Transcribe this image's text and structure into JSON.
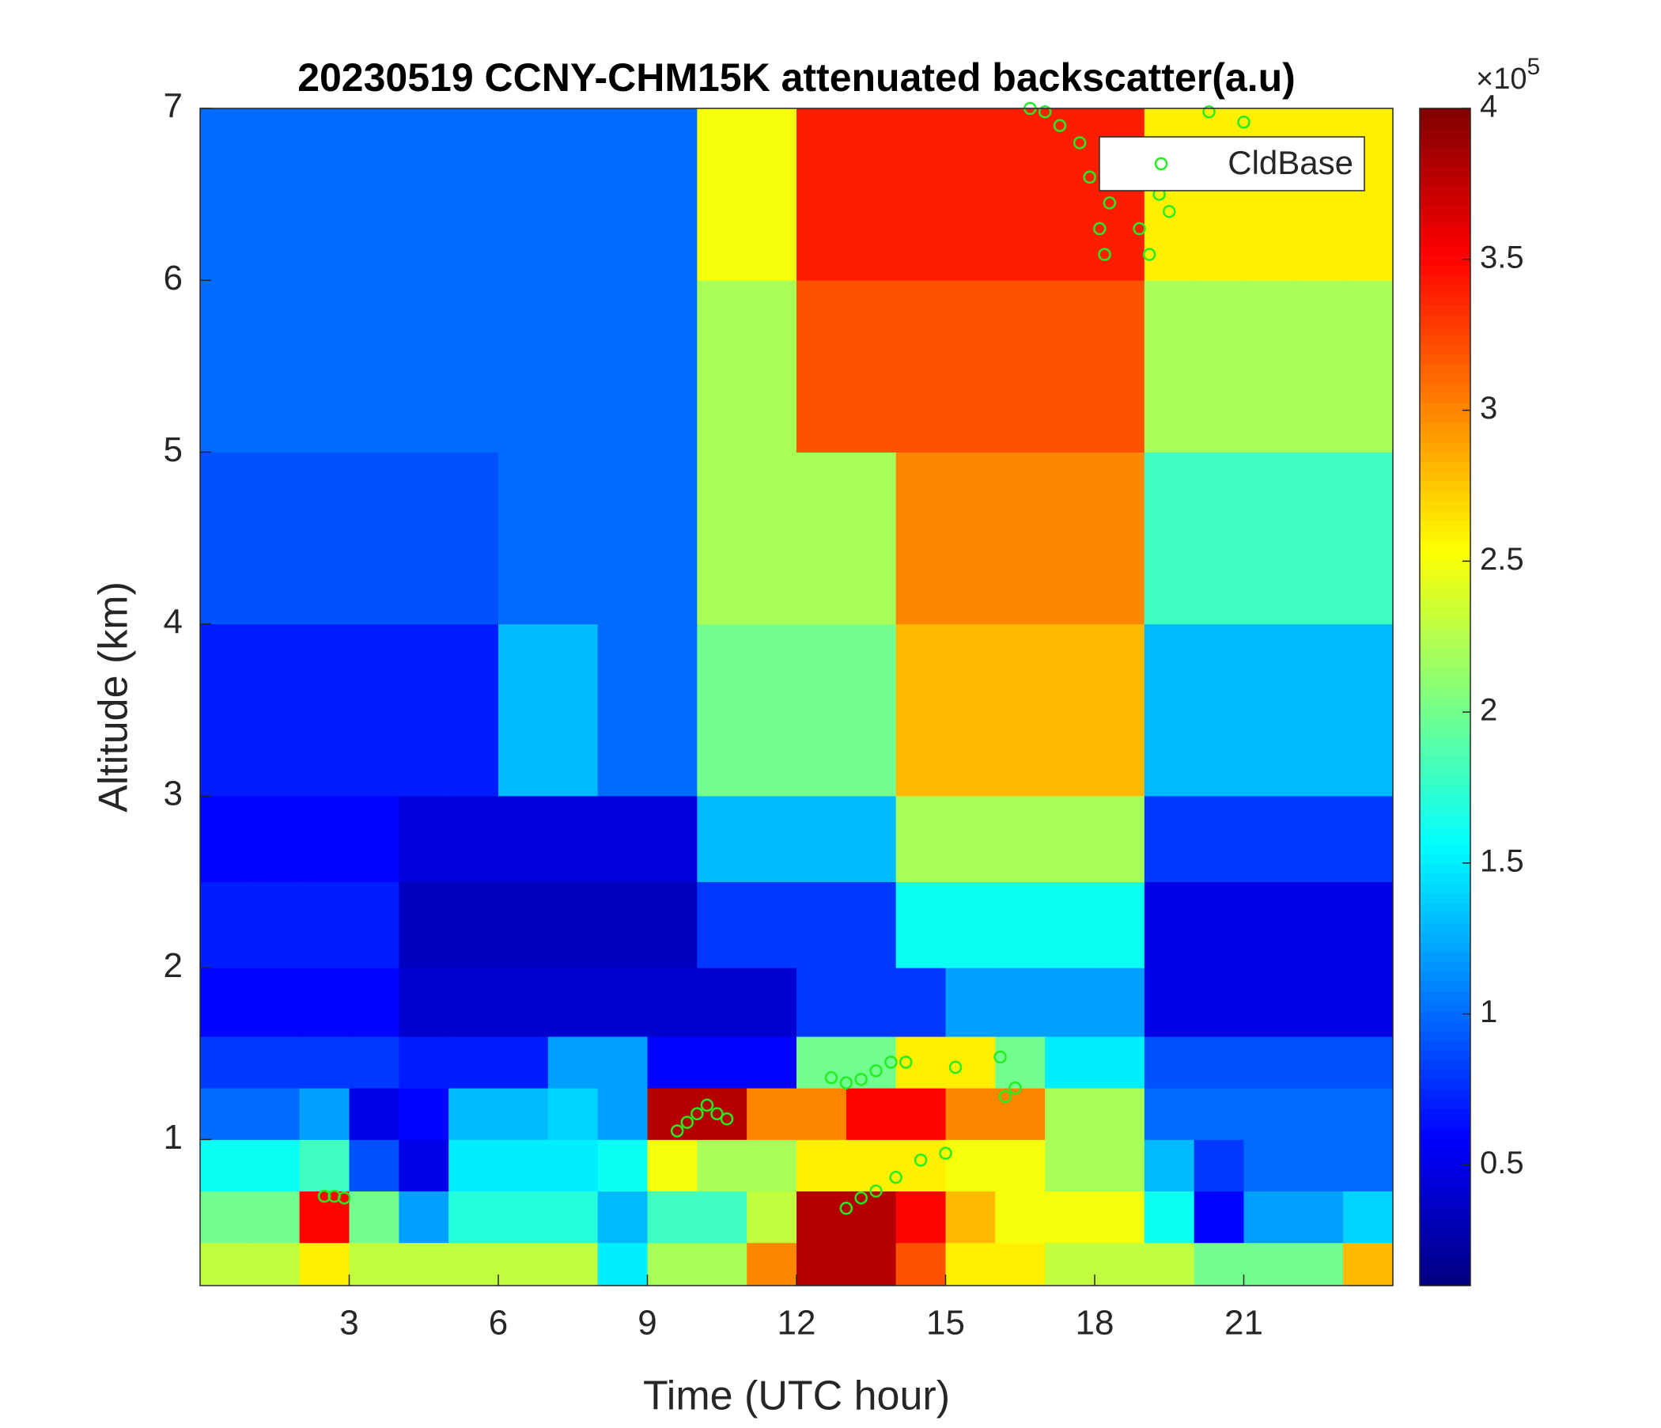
{
  "chart_data": {
    "type": "heatmap",
    "title": "20230519 CCNY-CHM15K attenuated backscatter(a.u)",
    "xlabel": "Time (UTC hour)",
    "ylabel": "Altitude (km)",
    "xlim": [
      0,
      24
    ],
    "ylim": [
      0.15,
      7
    ],
    "xticks": [
      3,
      6,
      9,
      12,
      15,
      18,
      21
    ],
    "yticks": [
      1,
      2,
      3,
      4,
      5,
      6,
      7
    ],
    "colormap": "jet",
    "clim": [
      0.1,
      4
    ],
    "cticks": [
      0.5,
      1,
      1.5,
      2,
      2.5,
      3,
      3.5,
      4
    ],
    "colorbar_multiplier": {
      "base": "×10",
      "exponent": "5"
    },
    "x_edges": [
      0,
      1,
      2,
      3,
      4,
      5,
      6,
      7,
      8,
      9,
      10,
      11,
      12,
      13,
      14,
      15,
      16,
      17,
      18,
      19,
      20,
      21,
      22,
      23,
      24
    ],
    "y_edges": [
      0.15,
      0.4,
      0.7,
      1.0,
      1.3,
      1.6,
      2.0,
      2.5,
      3,
      4,
      5,
      6,
      7
    ],
    "z": [
      [
        2.3,
        2.3,
        2.6,
        2.3,
        2.3,
        2.3,
        2.3,
        2.3,
        1.5,
        2.2,
        2.2,
        3.0,
        3.8,
        3.8,
        3.2,
        2.6,
        2.6,
        2.3,
        2.3,
        2.3,
        2.0,
        2.0,
        2.0,
        2.8
      ],
      [
        2.0,
        2.0,
        3.5,
        2.0,
        1.2,
        1.7,
        1.7,
        1.7,
        1.3,
        1.8,
        1.8,
        2.3,
        3.8,
        3.8,
        3.5,
        2.8,
        2.5,
        2.5,
        2.5,
        1.6,
        0.6,
        1.2,
        1.2,
        1.4
      ],
      [
        1.6,
        1.6,
        1.8,
        0.9,
        0.5,
        1.5,
        1.5,
        1.5,
        1.6,
        2.5,
        2.2,
        2.2,
        2.6,
        2.6,
        2.6,
        2.5,
        2.5,
        2.2,
        2.2,
        1.3,
        0.8,
        1.0,
        1.0,
        1.0
      ],
      [
        1.0,
        1.0,
        1.2,
        0.5,
        0.6,
        1.3,
        1.3,
        1.4,
        1.2,
        3.8,
        3.8,
        3.0,
        3.0,
        3.5,
        3.5,
        3.0,
        3.0,
        2.2,
        2.2,
        1.0,
        1.0,
        1.0,
        1.0,
        1.0
      ],
      [
        0.8,
        0.8,
        0.8,
        0.8,
        0.7,
        0.7,
        0.7,
        1.2,
        1.2,
        0.6,
        0.6,
        0.6,
        2.0,
        2.0,
        2.6,
        2.6,
        2.0,
        1.5,
        1.5,
        0.9,
        0.9,
        0.9,
        0.9,
        0.9
      ],
      [
        0.6,
        0.6,
        0.6,
        0.6,
        0.4,
        0.4,
        0.4,
        0.4,
        0.4,
        0.4,
        0.4,
        0.4,
        0.8,
        0.8,
        0.8,
        1.2,
        1.2,
        1.2,
        1.2,
        0.5,
        0.5,
        0.5,
        0.5,
        0.5
      ],
      [
        0.7,
        0.7,
        0.7,
        0.7,
        0.35,
        0.35,
        0.35,
        0.35,
        0.35,
        0.35,
        0.8,
        0.8,
        0.8,
        0.8,
        1.6,
        1.6,
        1.6,
        1.6,
        1.6,
        0.5,
        0.5,
        0.5,
        0.5,
        0.5
      ],
      [
        0.6,
        0.6,
        0.6,
        0.6,
        0.45,
        0.45,
        0.45,
        0.45,
        0.45,
        0.45,
        1.3,
        1.3,
        1.3,
        1.3,
        2.2,
        2.2,
        2.2,
        2.2,
        2.2,
        0.8,
        0.8,
        0.8,
        0.8,
        0.8
      ],
      [
        0.7,
        0.7,
        0.7,
        0.7,
        0.7,
        0.7,
        1.3,
        1.3,
        1.0,
        1.0,
        2.0,
        2.0,
        2.0,
        2.0,
        2.8,
        2.8,
        2.8,
        2.8,
        2.8,
        1.3,
        1.3,
        1.3,
        1.3,
        1.3
      ],
      [
        0.9,
        0.9,
        0.9,
        0.9,
        0.9,
        0.9,
        1.0,
        1.0,
        1.0,
        1.0,
        2.2,
        2.2,
        2.2,
        2.2,
        3.0,
        3.0,
        3.0,
        3.0,
        3.0,
        1.8,
        1.8,
        1.8,
        1.8,
        1.8
      ],
      [
        1.0,
        1.0,
        1.0,
        1.0,
        1.0,
        1.0,
        1.0,
        1.0,
        1.0,
        1.0,
        2.2,
        2.2,
        3.2,
        3.2,
        3.2,
        3.2,
        3.2,
        3.2,
        3.2,
        2.2,
        2.2,
        2.2,
        2.2,
        2.2
      ],
      [
        1.0,
        1.0,
        1.0,
        1.0,
        1.0,
        1.0,
        1.0,
        1.0,
        1.0,
        1.0,
        2.5,
        2.5,
        3.4,
        3.4,
        3.4,
        3.4,
        3.4,
        3.4,
        3.4,
        2.6,
        2.6,
        2.6,
        2.6,
        2.6
      ]
    ],
    "series": [
      {
        "name": "CldBase",
        "color": "#22ee22",
        "x": [
          2.5,
          2.7,
          2.9,
          9.6,
          9.8,
          10,
          10.2,
          10.4,
          10.6,
          12.7,
          13,
          13.3,
          13.6,
          13.9,
          14.2,
          15.2,
          16.1,
          16.2,
          16.4,
          13,
          13.3,
          13.6,
          14,
          14.5,
          15,
          16.7,
          17,
          17.3,
          17.7,
          17.9,
          18.1,
          18.2,
          18.3,
          18.9,
          19.1,
          19.3,
          19.5,
          20.3,
          21
        ],
        "y": [
          0.67,
          0.67,
          0.66,
          1.05,
          1.1,
          1.15,
          1.2,
          1.15,
          1.12,
          1.36,
          1.33,
          1.35,
          1.4,
          1.45,
          1.45,
          1.42,
          1.48,
          1.25,
          1.3,
          0.6,
          0.66,
          0.7,
          0.78,
          0.88,
          0.92,
          7.0,
          6.98,
          6.9,
          6.8,
          6.6,
          6.3,
          6.15,
          6.45,
          6.3,
          6.15,
          6.5,
          6.4,
          6.98,
          6.92
        ]
      }
    ],
    "legend": "northeast"
  }
}
